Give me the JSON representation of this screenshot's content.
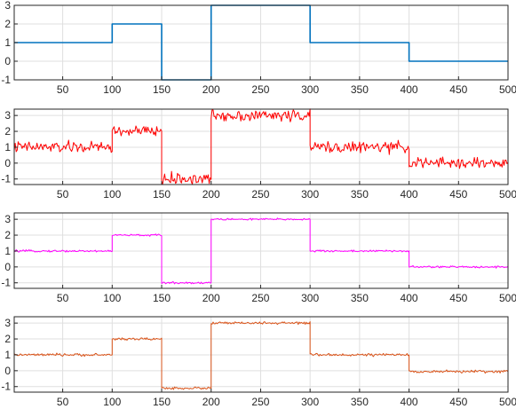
{
  "chart_data": [
    {
      "type": "line",
      "xlim": [
        1,
        500
      ],
      "ylim": [
        -1,
        3
      ],
      "xticks": [
        50,
        100,
        150,
        200,
        250,
        300,
        350,
        400,
        450,
        500
      ],
      "yticks": [
        -1,
        0,
        1,
        2,
        3
      ],
      "grid": true,
      "series": [
        {
          "color": "#0072BD",
          "noise": 0,
          "x": [
            1,
            100,
            100,
            150,
            150,
            200,
            200,
            300,
            300,
            400,
            400,
            500
          ],
          "y": [
            1,
            1,
            2,
            2,
            -1,
            -1,
            3,
            3,
            1,
            1,
            0,
            0
          ]
        }
      ]
    },
    {
      "type": "line",
      "xlim": [
        1,
        500
      ],
      "ylim": [
        -1.35,
        3.4
      ],
      "xticks": [
        50,
        100,
        150,
        200,
        250,
        300,
        350,
        400,
        450,
        500
      ],
      "yticks": [
        -1,
        0,
        1,
        2,
        3
      ],
      "grid": true,
      "series": [
        {
          "color": "#FF0000",
          "noise": 0.22,
          "x": [
            1,
            100,
            100,
            150,
            150,
            200,
            200,
            300,
            300,
            400,
            400,
            500
          ],
          "y": [
            1,
            1,
            2,
            2,
            -1,
            -1,
            3,
            3,
            1,
            1,
            0,
            0
          ]
        }
      ]
    },
    {
      "type": "line",
      "xlim": [
        1,
        500
      ],
      "ylim": [
        -1.35,
        3.4
      ],
      "xticks": [
        50,
        100,
        150,
        200,
        250,
        300,
        350,
        400,
        450,
        500
      ],
      "yticks": [
        -1,
        0,
        1,
        2,
        3
      ],
      "grid": true,
      "series": [
        {
          "color": "#FF00FF",
          "noise": 0.04,
          "x": [
            1,
            100,
            100,
            150,
            150,
            200,
            200,
            300,
            300,
            400,
            400,
            500
          ],
          "y": [
            1,
            1,
            2,
            2,
            -1,
            -1,
            3,
            3,
            1,
            1,
            0,
            0
          ]
        }
      ]
    },
    {
      "type": "line",
      "xlim": [
        1,
        500
      ],
      "ylim": [
        -1.35,
        3.4
      ],
      "xticks": [
        50,
        100,
        150,
        200,
        250,
        300,
        350,
        400,
        450,
        500
      ],
      "yticks": [
        -1,
        0,
        1,
        2,
        3
      ],
      "grid": true,
      "series": [
        {
          "color": "#D95319",
          "noise": 0.05,
          "x": [
            1,
            100,
            100,
            150,
            150,
            200,
            200,
            300,
            300,
            400,
            400,
            500
          ],
          "y": [
            1,
            1,
            2,
            2,
            -1.1,
            -1.1,
            3,
            3,
            1,
            1,
            -0.05,
            -0.05
          ]
        }
      ]
    }
  ]
}
